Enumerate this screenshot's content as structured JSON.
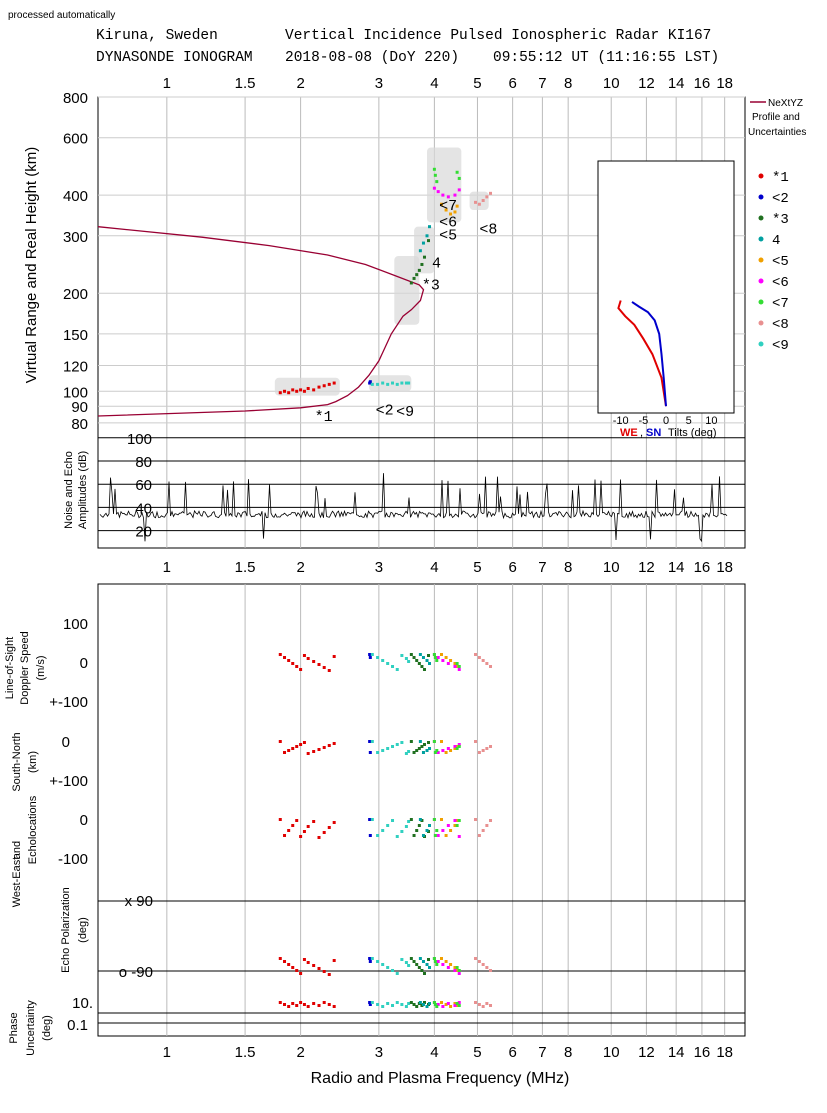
{
  "header": {
    "processed": "processed automatically",
    "station": "Kiruna, Sweden",
    "radar": "Vertical Incidence Pulsed Ionospheric Radar KI167",
    "instrument": "DYNASONDE IONOGRAM",
    "date": "2018-08-08 (DoY 220)",
    "time": "09:55:12 UT (11:16:55 LST)"
  },
  "legend": {
    "profile_title": "NeXtYZ",
    "profile_sub1": "Profile and",
    "profile_sub2": "Uncertainties",
    "items": [
      {
        "sym": "*1",
        "color": "#e00000"
      },
      {
        "sym": "<2",
        "color": "#0000cc"
      },
      {
        "sym": "*3",
        "color": "#207020"
      },
      {
        "sym": " 4",
        "color": "#00a0a0"
      },
      {
        "sym": "<5",
        "color": "#f0a000"
      },
      {
        "sym": "<6",
        "color": "#ff00ff"
      },
      {
        "sym": "<7",
        "color": "#33dd33"
      },
      {
        "sym": "<8",
        "color": "#e89090"
      },
      {
        "sym": "<9",
        "color": "#30d0c0"
      }
    ]
  },
  "chart_data": {
    "type": "scatter",
    "x_axis": {
      "label": "Radio and Plasma Frequency (MHz)",
      "scale": "log",
      "range_mhz": [
        0.7,
        20
      ],
      "ticks": [
        1,
        1.5,
        2,
        3,
        4,
        5,
        6,
        7,
        8,
        10,
        12,
        14,
        16,
        18
      ]
    },
    "ionogram": {
      "ylabel": "Virtual Range and Real Height (km)",
      "yscale": "log",
      "ylim": [
        75,
        800
      ],
      "ticks": [
        80,
        90,
        100,
        120,
        150,
        200,
        300,
        400,
        600,
        800
      ],
      "trace_labels": [
        {
          "text": "*1",
          "f": 2.15,
          "h": 81
        },
        {
          "text": "<2",
          "f": 2.95,
          "h": 85
        },
        {
          "text": "<9",
          "f": 3.28,
          "h": 84
        },
        {
          "text": "*3",
          "f": 3.75,
          "h": 205
        },
        {
          "text": "4",
          "f": 3.95,
          "h": 240
        },
        {
          "text": "<5",
          "f": 4.1,
          "h": 292
        },
        {
          "text": "<6",
          "f": 4.1,
          "h": 320
        },
        {
          "text": "<7",
          "f": 4.1,
          "h": 360
        },
        {
          "text": "<8",
          "f": 5.05,
          "h": 305
        }
      ],
      "profile": {
        "color": "#990033",
        "f": [
          0.7,
          1.5,
          2.0,
          2.3,
          2.4,
          2.55,
          2.7,
          2.85,
          3.0,
          3.2,
          3.4,
          3.55,
          3.72,
          3.78,
          3.7,
          3.3,
          2.8,
          2.3,
          1.7,
          1.2,
          0.7
        ],
        "h": [
          84,
          87,
          89,
          91,
          93,
          97,
          103,
          112,
          124,
          150,
          170,
          178,
          190,
          205,
          212,
          225,
          245,
          262,
          280,
          297,
          320
        ]
      },
      "traces": [
        {
          "id": "*1",
          "f": [
            1.8,
            1.84,
            1.88,
            1.92,
            1.96,
            2.0,
            2.04,
            2.08,
            2.14,
            2.2,
            2.26,
            2.32,
            2.38
          ],
          "h": [
            99,
            100,
            99,
            101,
            100,
            101,
            100,
            102,
            101,
            103,
            104,
            105,
            106
          ]
        },
        {
          "id": "<2",
          "f": [
            2.86,
            2.87
          ],
          "h": [
            106,
            107
          ]
        },
        {
          "id": "<9",
          "f": [
            2.9,
            2.98,
            3.06,
            3.14,
            3.22,
            3.3,
            3.38,
            3.46,
            3.5
          ],
          "h": [
            105,
            105,
            106,
            105,
            106,
            105,
            106,
            106,
            106
          ]
        },
        {
          "id": "*3",
          "f": [
            3.55,
            3.6,
            3.65,
            3.7,
            3.75,
            3.8,
            3.88
          ],
          "h": [
            215,
            222,
            228,
            235,
            245,
            258,
            290
          ]
        },
        {
          "id": "4",
          "f": [
            3.72,
            3.78,
            3.85,
            3.9
          ],
          "h": [
            270,
            285,
            300,
            320
          ]
        },
        {
          "id": "<5",
          "f": [
            4.15,
            4.25,
            4.35,
            4.45,
            4.5
          ],
          "h": [
            375,
            360,
            350,
            355,
            370
          ]
        },
        {
          "id": "<6",
          "f": [
            4.0,
            4.08,
            4.18,
            4.3,
            4.45,
            4.55
          ],
          "h": [
            420,
            410,
            400,
            395,
            400,
            415
          ]
        },
        {
          "id": "<7",
          "f": [
            4.0,
            4.02,
            4.05,
            4.5,
            4.55
          ],
          "h": [
            480,
            460,
            440,
            470,
            450
          ]
        },
        {
          "id": "<8",
          "f": [
            4.95,
            5.05,
            5.15,
            5.25,
            5.35
          ],
          "h": [
            380,
            375,
            385,
            395,
            405
          ]
        }
      ]
    },
    "amplitude": {
      "ylabel_1": "Noise and Echo",
      "ylabel_2": "Amplitudes (dB)",
      "ticks": [
        20,
        40,
        60,
        80,
        100
      ],
      "ylim": [
        5,
        105
      ],
      "noise_level_db": 34,
      "echo_level_db": 57
    },
    "doppler": {
      "ylabel_1": "Line-of-Sight",
      "ylabel_2": "Doppler Speed",
      "ylabel_3": "(m/s)",
      "ticks": [
        "100",
        "0",
        "+-100"
      ]
    },
    "echolocation": {
      "ylabel_sn_1": "South-North",
      "ylabel_sn_2": "(km)",
      "ylabel_1": "Echolocations",
      "ylabel_and": "and",
      "ylabel_we": "West-East",
      "sn_ticks": [
        "0",
        "+-100"
      ],
      "we_ticks": [
        "0",
        "-100"
      ]
    },
    "polarization": {
      "ylabel_1": "Echo Polarization",
      "ylabel_2": "(deg)",
      "x_label": "x  90",
      "o_label": "o  -90"
    },
    "phase": {
      "ylabel_1": "Phase",
      "ylabel_2": "Uncertainty",
      "ylabel_3": "(deg)",
      "ticks": [
        "10.",
        "0.1"
      ]
    },
    "tilts_inset": {
      "xlabel_we": "WE",
      "xlabel_sep": ",",
      "xlabel_sn": "SN",
      "xlabel_rest": "Tilts (deg)",
      "ticks": [
        -10,
        -5,
        0,
        5,
        10
      ],
      "xlim": [
        -15,
        15
      ],
      "we_color": "#e00000",
      "sn_color": "#0000cc",
      "we": {
        "tilt": [
          0,
          -1,
          -3,
          -5,
          -7,
          -9,
          -10.5,
          -10
        ],
        "h": [
          90,
          110,
          130,
          145,
          160,
          170,
          180,
          190
        ]
      },
      "sn": {
        "tilt": [
          0,
          -0.5,
          -1,
          -1.5,
          -2.5,
          -4,
          -6,
          -7.5
        ],
        "h": [
          90,
          110,
          130,
          150,
          165,
          175,
          182,
          188
        ]
      }
    }
  }
}
